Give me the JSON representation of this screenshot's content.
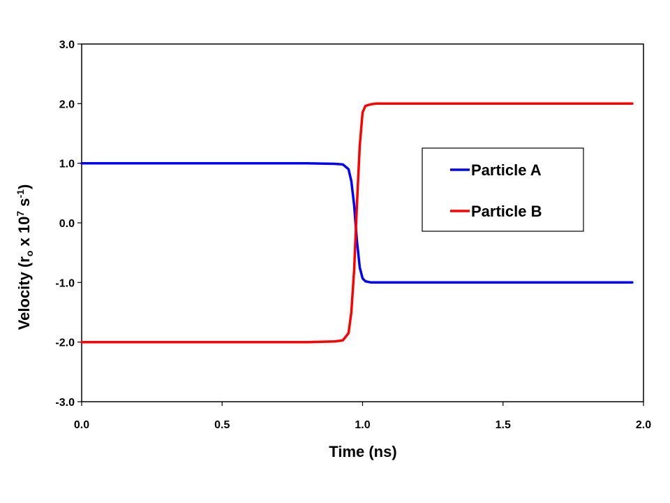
{
  "chart_data": {
    "type": "line",
    "title": "",
    "xlabel": "Time (ns)",
    "ylabel": {
      "prefix": "Velocity (r",
      "sub": "o",
      "mid": " x 10",
      "sup1": "7",
      "mid2": " s",
      "sup2": "-1",
      "suffix": ")"
    },
    "xlim": [
      0,
      2.0
    ],
    "ylim": [
      -3.0,
      3.0
    ],
    "xticks": [
      "0.0",
      "0.5",
      "1.0",
      "1.5",
      "2.0"
    ],
    "xtick_values": [
      0,
      0.5,
      1.0,
      1.5,
      2.0
    ],
    "yticks": [
      "3.0",
      "2.0",
      "1.0",
      "0.0",
      "-1.0",
      "-2.0",
      "-3.0"
    ],
    "ytick_values": [
      3,
      2,
      1,
      0,
      -1,
      -2,
      -3
    ],
    "grid": false,
    "legend_position": "center-right",
    "series": [
      {
        "name": "Particle A",
        "color": "#0000ff",
        "x": [
          0,
          0.2,
          0.4,
          0.6,
          0.8,
          0.9,
          0.93,
          0.95,
          0.96,
          0.97,
          0.98,
          0.99,
          1.0,
          1.01,
          1.03,
          1.05,
          1.1,
          1.2,
          1.4,
          1.6,
          1.8,
          1.96
        ],
        "y": [
          1.0,
          1.0,
          1.0,
          1.0,
          1.0,
          0.99,
          0.98,
          0.9,
          0.7,
          0.3,
          -0.3,
          -0.75,
          -0.93,
          -0.98,
          -1.0,
          -1.0,
          -1.0,
          -1.0,
          -1.0,
          -1.0,
          -1.0,
          -1.0
        ]
      },
      {
        "name": "Particle B",
        "color": "#ff0000",
        "x": [
          0,
          0.2,
          0.4,
          0.6,
          0.8,
          0.9,
          0.93,
          0.95,
          0.96,
          0.97,
          0.98,
          0.99,
          1.0,
          1.01,
          1.03,
          1.05,
          1.1,
          1.2,
          1.4,
          1.6,
          1.8,
          1.96
        ],
        "y": [
          -2.0,
          -2.0,
          -2.0,
          -2.0,
          -2.0,
          -1.99,
          -1.97,
          -1.85,
          -1.5,
          -0.8,
          0.3,
          1.3,
          1.85,
          1.96,
          1.99,
          2.0,
          2.0,
          2.0,
          2.0,
          2.0,
          2.0,
          2.0
        ]
      }
    ]
  }
}
